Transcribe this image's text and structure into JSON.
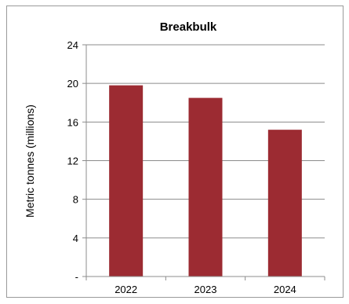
{
  "chart_data": {
    "type": "bar",
    "title": "Breakbulk",
    "xlabel": "",
    "ylabel": "Metric tonnes  (millions)",
    "categories": [
      "2022",
      "2023",
      "2024"
    ],
    "values": [
      19.8,
      18.5,
      15.2
    ],
    "ylim": [
      0,
      24
    ],
    "yticks": [
      0,
      4,
      8,
      12,
      16,
      20,
      24
    ],
    "ytick_labels": [
      "-",
      "4",
      "8",
      "12",
      "16",
      "20",
      "24"
    ],
    "grid": true,
    "legend": "none",
    "colors": {
      "bar": "#9c2b32",
      "grid": "#8c8c8c",
      "axis": "#8c8c8c",
      "frame": "#9a9a9a"
    }
  }
}
